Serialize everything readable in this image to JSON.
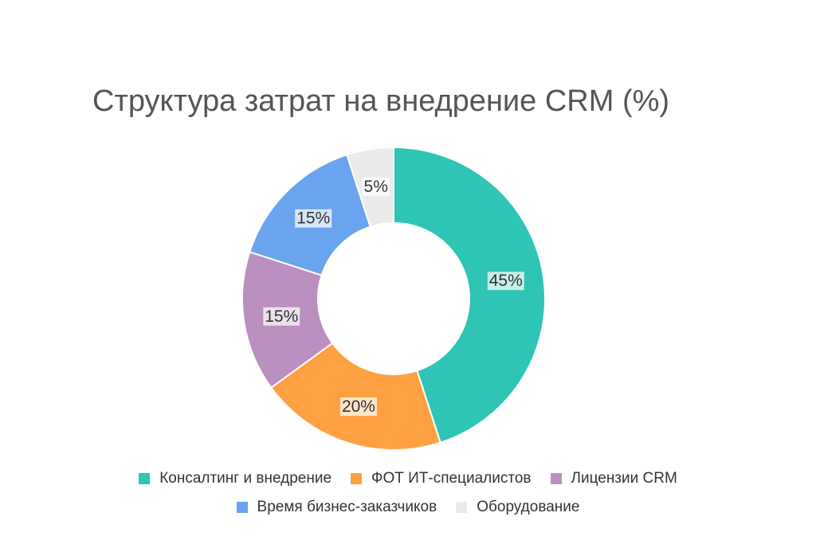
{
  "chart_data": {
    "type": "pie",
    "title": "Структура затрат на внедрение CRM (%)",
    "donut": true,
    "legend_position": "bottom",
    "slices": [
      {
        "name": "Консалтинг и внедрение",
        "value": 45,
        "label": "45%",
        "color": "#2ec4b6"
      },
      {
        "name": "ФОТ ИТ-специалистов",
        "value": 20,
        "label": "20%",
        "color": "#ffa142"
      },
      {
        "name": "Лицензии CRM",
        "value": 15,
        "label": "15%",
        "color": "#bb8fc0"
      },
      {
        "name": "Время бизнес-заказчиков",
        "value": 15,
        "label": "15%",
        "color": "#6aa3ee"
      },
      {
        "name": "Оборудование",
        "value": 5,
        "label": "5%",
        "color": "#ebebeb"
      }
    ]
  }
}
